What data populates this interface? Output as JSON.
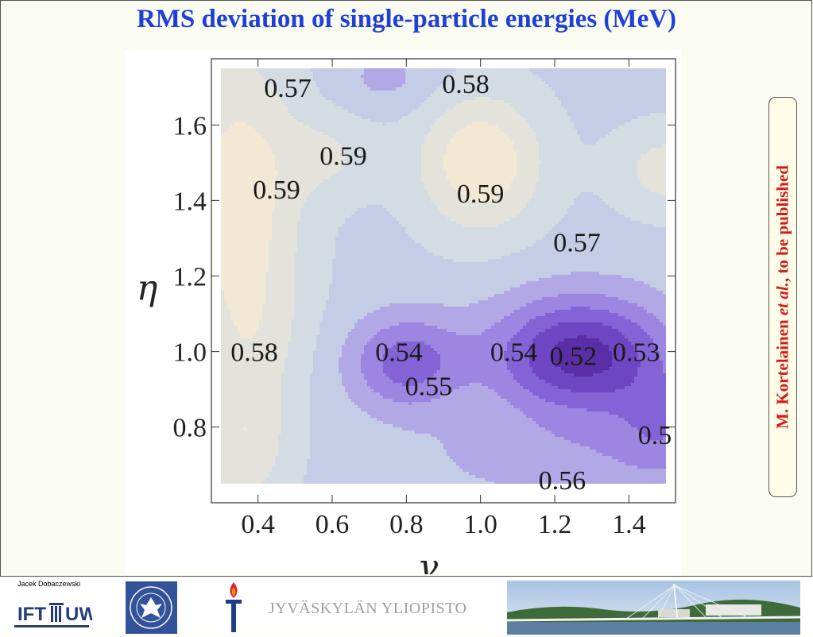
{
  "slide": {
    "title": "RMS deviation of single-particle energies (MeV)",
    "side_note_parts": [
      "M. Kortelainen ",
      "et al.",
      ", to be published"
    ]
  },
  "footer": {
    "author": "Jacek Dobaczewski",
    "ift_logo_text": "IFT UW",
    "university_name": "JYVÄSKYLÄN YLIOPISTO"
  },
  "chart_data": {
    "type": "contour",
    "xlabel": "γ",
    "ylabel": "η",
    "xlim": [
      0.3,
      1.5
    ],
    "ylim": [
      0.65,
      1.75
    ],
    "xticks": [
      "0.4",
      "0.6",
      "0.8",
      "1.0",
      "1.2",
      "1.4"
    ],
    "yticks": [
      "0.8",
      "1.0",
      "1.2",
      "1.4",
      "1.6"
    ],
    "contour_labels": [
      {
        "text": "0.57",
        "x": 0.48,
        "y": 1.7
      },
      {
        "text": "0.58",
        "x": 0.96,
        "y": 1.71
      },
      {
        "text": "0.59",
        "x": 0.63,
        "y": 1.52
      },
      {
        "text": "0.59",
        "x": 0.45,
        "y": 1.43
      },
      {
        "text": "0.59",
        "x": 1.0,
        "y": 1.42
      },
      {
        "text": "0.57",
        "x": 1.26,
        "y": 1.29
      },
      {
        "text": "0.58",
        "x": 0.39,
        "y": 1.0
      },
      {
        "text": "0.54",
        "x": 0.78,
        "y": 1.0
      },
      {
        "text": "0.55",
        "x": 0.86,
        "y": 0.91
      },
      {
        "text": "0.54",
        "x": 1.09,
        "y": 1.0
      },
      {
        "text": "0.52",
        "x": 1.25,
        "y": 0.99
      },
      {
        "text": "0.53",
        "x": 1.42,
        "y": 1.0
      },
      {
        "text": "0.5",
        "x": 1.47,
        "y": 0.78
      },
      {
        "text": "0.56",
        "x": 1.22,
        "y": 0.66
      }
    ],
    "colorscale": {
      "low": "#5b2fa8",
      "high": "#f3ead7"
    }
  }
}
